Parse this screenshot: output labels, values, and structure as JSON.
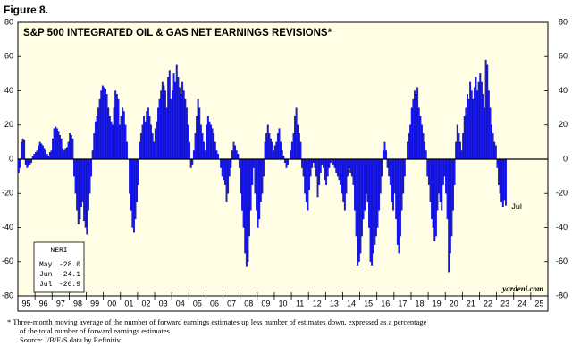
{
  "figure_label": "Figure 8.",
  "chart_data": {
    "type": "bar",
    "title": "S&P 500 INTEGRATED OIL & GAS NET EARNINGS REVISIONS*",
    "categories": [
      null,
      null,
      null,
      null,
      null,
      null,
      "95",
      null,
      null,
      null,
      null,
      null,
      null,
      null,
      null,
      null,
      null,
      null,
      "96",
      null,
      null,
      null,
      null,
      null,
      null,
      null,
      null,
      null,
      null,
      null,
      "97",
      null,
      null,
      null,
      null,
      null,
      null,
      null,
      null,
      null,
      null,
      null,
      "98",
      null,
      null,
      null,
      null,
      null,
      null,
      null,
      null,
      null,
      null,
      null,
      "99",
      null,
      null,
      null,
      null,
      null,
      null,
      null,
      null,
      null,
      null,
      null,
      "00",
      null,
      null,
      null,
      null,
      null,
      null,
      null,
      null,
      null,
      null,
      null,
      "01",
      null,
      null,
      null,
      null,
      null,
      null,
      null,
      null,
      null,
      null,
      null,
      "02",
      null,
      null,
      null,
      null,
      null,
      null,
      null,
      null,
      null,
      null,
      null,
      "03",
      null,
      null,
      null,
      null,
      null,
      null,
      null,
      null,
      null,
      null,
      null,
      "04",
      null,
      null,
      null,
      null,
      null,
      null,
      null,
      null,
      null,
      null,
      null,
      "05",
      null,
      null,
      null,
      null,
      null,
      null,
      null,
      null,
      null,
      null,
      null,
      "06",
      null,
      null,
      null,
      null,
      null,
      null,
      null,
      null,
      null,
      null,
      null,
      "07",
      null,
      null,
      null,
      null,
      null,
      null,
      null,
      null,
      null,
      null,
      null,
      "08",
      null,
      null,
      null,
      null,
      null,
      null,
      null,
      null,
      null,
      null,
      null,
      "09",
      null,
      null,
      null,
      null,
      null,
      null,
      null,
      null,
      null,
      null,
      null,
      "10",
      null,
      null,
      null,
      null,
      null,
      null,
      null,
      null,
      null,
      null,
      null,
      "11",
      null,
      null,
      null,
      null,
      null,
      null,
      null,
      null,
      null,
      null,
      null,
      "12",
      null,
      null,
      null,
      null,
      null,
      null,
      null,
      null,
      null,
      null,
      null,
      "13",
      null,
      null,
      null,
      null,
      null,
      null,
      null,
      null,
      null,
      null,
      null,
      "14",
      null,
      null,
      null,
      null,
      null,
      null,
      null,
      null,
      null,
      null,
      null,
      "15",
      null,
      null,
      null,
      null,
      null,
      null,
      null,
      null,
      null,
      null,
      null,
      "16",
      null,
      null,
      null,
      null,
      null,
      null,
      null,
      null,
      null,
      null,
      null,
      "17",
      null,
      null,
      null,
      null,
      null,
      null,
      null,
      null,
      null,
      null,
      null,
      "18",
      null,
      null,
      null,
      null,
      null,
      null,
      null,
      null,
      null,
      null,
      null,
      "19",
      null,
      null,
      null,
      null,
      null,
      null,
      null,
      null,
      null,
      null,
      null,
      "20",
      null,
      null,
      null,
      null,
      null,
      null,
      null,
      null,
      null,
      null,
      null,
      "21",
      null,
      null,
      null,
      null,
      null,
      null,
      null,
      null,
      null,
      null,
      null,
      "22",
      null,
      null,
      null,
      null,
      null,
      null,
      null,
      null,
      null,
      null,
      null,
      "23",
      null,
      null,
      null,
      null,
      null,
      null,
      null,
      null,
      null,
      null,
      null,
      "24",
      null,
      null,
      null,
      null,
      null,
      null,
      null,
      null,
      null,
      null,
      null,
      "25",
      null,
      null,
      null,
      null,
      null
    ],
    "values": [
      -8,
      -5,
      10,
      12,
      11,
      -3,
      -5,
      -4,
      -3,
      -2,
      2,
      3,
      4,
      5,
      8,
      10,
      9,
      8,
      6,
      5,
      3,
      2,
      4,
      5,
      12,
      18,
      19,
      18,
      16,
      14,
      12,
      6,
      5,
      6,
      7,
      10,
      15,
      14,
      12,
      -10,
      -20,
      -30,
      -38,
      -35,
      -28,
      -25,
      -36,
      -40,
      -44,
      -30,
      -20,
      -10,
      5,
      15,
      22,
      25,
      30,
      35,
      40,
      43,
      42,
      41,
      38,
      30,
      25,
      22,
      20,
      30,
      40,
      38,
      35,
      20,
      25,
      30,
      28,
      20,
      10,
      0,
      -20,
      -30,
      -40,
      -43,
      -35,
      -25,
      -15,
      10,
      15,
      20,
      25,
      22,
      28,
      30,
      25,
      20,
      15,
      10,
      18,
      22,
      30,
      35,
      40,
      45,
      43,
      40,
      30,
      48,
      52,
      35,
      40,
      50,
      45,
      55,
      48,
      42,
      38,
      45,
      40,
      35,
      30,
      20,
      10,
      -5,
      -3,
      5,
      15,
      25,
      35,
      30,
      20,
      15,
      10,
      5,
      20,
      25,
      22,
      20,
      18,
      15,
      10,
      5,
      3,
      0,
      -5,
      -10,
      -12,
      -15,
      -25,
      -20,
      -10,
      -5,
      5,
      10,
      8,
      5,
      3,
      -5,
      -20,
      -30,
      -40,
      -55,
      -63,
      -60,
      -45,
      -30,
      -15,
      -5,
      -20,
      -30,
      -40,
      -35,
      -25,
      -20,
      -10,
      10,
      15,
      20,
      15,
      12,
      10,
      5,
      8,
      10,
      15,
      18,
      10,
      5,
      2,
      -2,
      -5,
      -3,
      0,
      5,
      10,
      15,
      25,
      30,
      20,
      15,
      10,
      -5,
      -10,
      -20,
      -25,
      -30,
      -18,
      -10,
      -5,
      -2,
      -5,
      -10,
      -22,
      -15,
      -8,
      -3,
      -5,
      -12,
      -15,
      -10,
      -5,
      -2,
      0,
      -3,
      -5,
      -8,
      -10,
      -12,
      -15,
      -20,
      -25,
      -30,
      -20,
      -10,
      -5,
      -8,
      -10,
      -15,
      -30,
      -45,
      -62,
      -60,
      -55,
      -45,
      -35,
      -30,
      -20,
      -25,
      -40,
      -60,
      -62,
      -55,
      -50,
      -45,
      -40,
      -30,
      -20,
      -10,
      5,
      10,
      5,
      -5,
      -10,
      -15,
      -25,
      -30,
      -20,
      -35,
      -50,
      -55,
      -45,
      -30,
      -20,
      -10,
      0,
      10,
      15,
      20,
      30,
      35,
      40,
      38,
      42,
      30,
      25,
      20,
      15,
      10,
      5,
      -10,
      -15,
      -25,
      -35,
      -40,
      -48,
      -45,
      -30,
      -20,
      -25,
      -30,
      -15,
      -10,
      -20,
      -35,
      -66,
      -55,
      -45,
      -30,
      -15,
      10,
      20,
      15,
      10,
      5,
      15,
      25,
      30,
      38,
      35,
      45,
      40,
      35,
      42,
      48,
      40,
      45,
      50,
      45,
      38,
      30,
      58,
      55,
      40,
      30,
      20,
      15,
      10,
      8,
      -5,
      -15,
      -20,
      -25,
      -28,
      -24.1,
      -26.9,
      null,
      null,
      null,
      null,
      null,
      null,
      null,
      null,
      null,
      null,
      null,
      null,
      null,
      null,
      null,
      null,
      null,
      null,
      null,
      null,
      null,
      null,
      null,
      null,
      null,
      null,
      null,
      null,
      null
    ],
    "color": "#1a1aff",
    "ylim": [
      -80,
      80
    ],
    "yticks": [
      -80,
      -60,
      -40,
      -20,
      0,
      20,
      40,
      60,
      80
    ],
    "y2lim": [
      -80,
      80
    ],
    "y2ticks": [
      -80,
      -60,
      -40,
      -20,
      0,
      20,
      40,
      60,
      80
    ],
    "annotation": "Jul",
    "legend_box": {
      "title": "NERI",
      "rows": [
        {
          "month": "May",
          "value": "-28.0"
        },
        {
          "month": "Jun",
          "value": "-24.1"
        },
        {
          "month": "Jul",
          "value": "-26.9"
        }
      ]
    },
    "source_tag": "yardeni.com"
  },
  "footnote": [
    "*  Three-month moving average of the number of forward earnings estimates up less number of estimates down, expressed as a percentage",
    "of the total number of forward earnings estimates.",
    "Source: I/B/E/S data by Refinitiv."
  ]
}
